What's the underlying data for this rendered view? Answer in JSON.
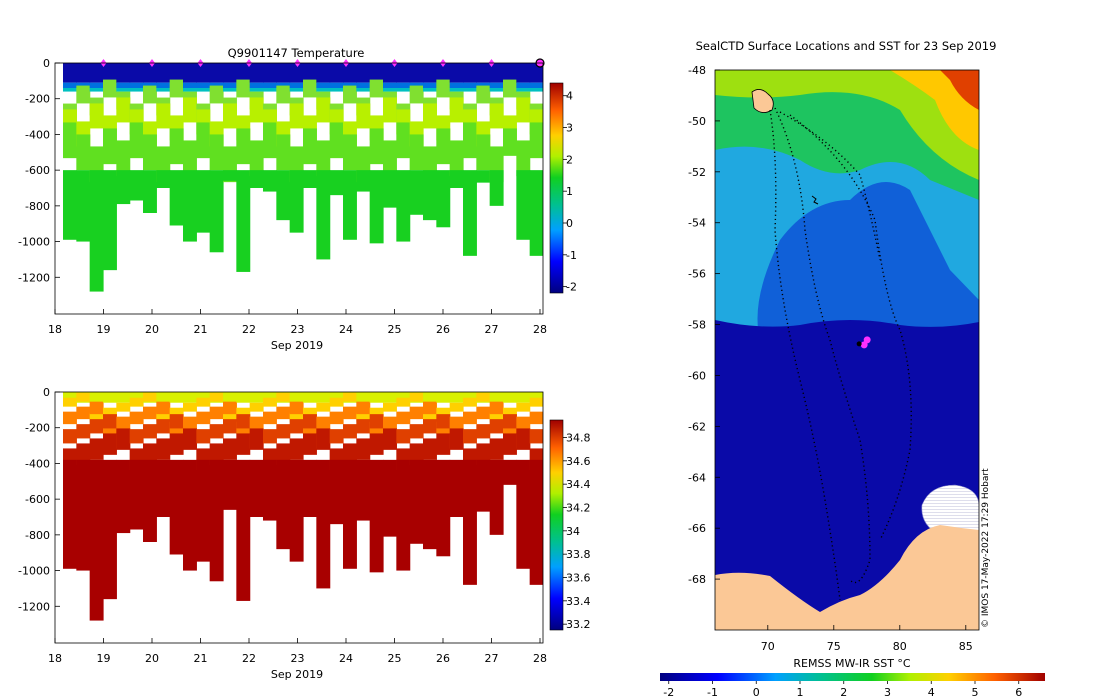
{
  "chart_data": [
    {
      "type": "heatmap",
      "title": "Q9901147  Temperature",
      "x_ticks": [
        "18",
        "19",
        "20",
        "21",
        "22",
        "23",
        "24",
        "25",
        "26",
        "27",
        "28"
      ],
      "x_range": [
        18,
        28
      ],
      "xlabel": "Sep 2019",
      "y_ticks": [
        "0",
        "-200",
        "-400",
        "-600",
        "-800",
        "-1000",
        "-1200"
      ],
      "y_range": [
        -1400,
        0
      ],
      "colorbar_ticks": [
        "4",
        "3",
        "2",
        "1",
        "0",
        "-1",
        "-2"
      ],
      "colorbar_range": [
        -2.2,
        4.4
      ],
      "surface_marker_days": [
        19,
        20,
        21,
        22,
        23,
        24,
        25,
        26,
        27
      ],
      "latest_profile_day": 28,
      "profile_max_depth": [
        -990,
        -1000,
        -1280,
        -1160,
        -790,
        -770,
        -840,
        -700,
        -910,
        -1000,
        -950,
        -1060,
        -660,
        -1170,
        -700,
        -720,
        -880,
        -950,
        -700,
        -1100,
        -740,
        -990,
        -720,
        -1010,
        -810,
        -1000,
        -850,
        -880,
        -920,
        -700,
        -1080,
        -670,
        -800,
        -520,
        -990,
        -1080
      ]
    },
    {
      "type": "heatmap",
      "title": "",
      "x_ticks": [
        "18",
        "19",
        "20",
        "21",
        "22",
        "23",
        "24",
        "25",
        "26",
        "27",
        "28"
      ],
      "x_range": [
        18,
        28
      ],
      "xlabel": "Sep 2019",
      "y_ticks": [
        "0",
        "-200",
        "-400",
        "-600",
        "-800",
        "-1000",
        "-1200"
      ],
      "y_range": [
        -1400,
        0
      ],
      "colorbar_ticks": [
        "34.8",
        "34.6",
        "34.4",
        "34.2",
        "34",
        "33.8",
        "33.6",
        "33.4",
        "33.2"
      ],
      "colorbar_range": [
        33.15,
        34.95
      ],
      "profile_max_depth": [
        -990,
        -1000,
        -1280,
        -1160,
        -790,
        -770,
        -840,
        -700,
        -910,
        -1000,
        -950,
        -1060,
        -660,
        -1170,
        -700,
        -720,
        -880,
        -950,
        -700,
        -1100,
        -740,
        -990,
        -720,
        -1010,
        -810,
        -1000,
        -850,
        -880,
        -920,
        -700,
        -1080,
        -670,
        -800,
        -520,
        -990,
        -1080
      ]
    },
    {
      "type": "heatmap",
      "title": "SealCTD Surface Locations and SST for 23 Sep 2019",
      "x_ticks": [
        "70",
        "75",
        "80",
        "85"
      ],
      "x_range": [
        66,
        86
      ],
      "y_ticks": [
        "-48",
        "-50",
        "-52",
        "-54",
        "-56",
        "-58",
        "-60",
        "-62",
        "-64",
        "-66",
        "-68"
      ],
      "y_range": [
        -70,
        -48
      ],
      "colorbar_label": "REMSS MW-IR SST °C",
      "colorbar_ticks": [
        "-2",
        "-1",
        "0",
        "1",
        "2",
        "3",
        "4",
        "5",
        "6"
      ],
      "colorbar_range": [
        -2.2,
        6.6
      ],
      "credit": "© IMOS 17-May-2022 17:29 Hobart",
      "current_location": [
        77.3,
        -58.8
      ]
    }
  ]
}
